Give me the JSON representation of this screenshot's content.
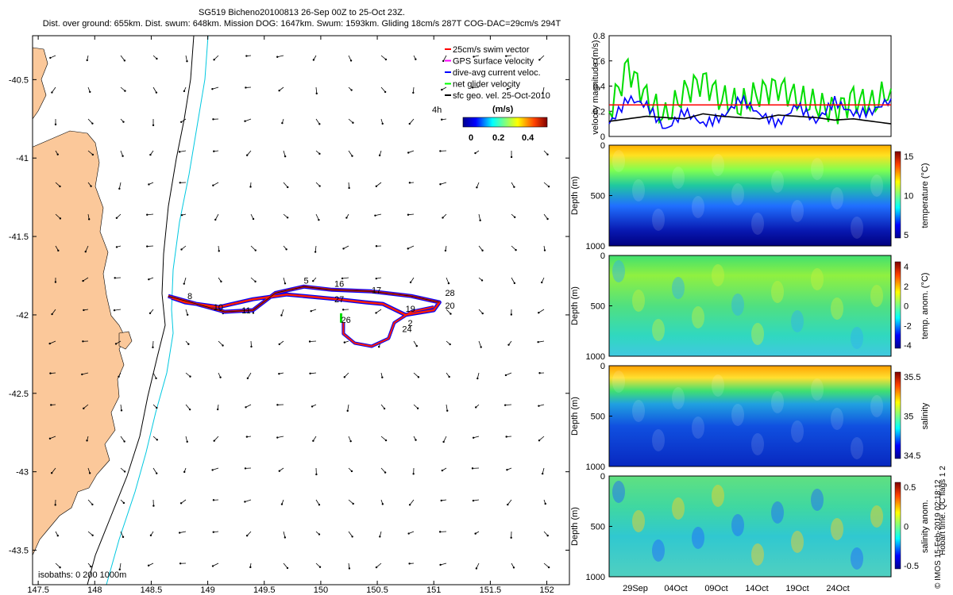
{
  "header": {
    "title": "SG519 Bicheno20100813 26-Sep 00Z to 25-Oct 23Z.",
    "subtitle": "Dist. over ground: 655km. Dist. swum: 648km. Mission DOG: 1647km. Swum: 1593km. Gliding 18cm/s 287T COG-DAC=29cm/s 294T"
  },
  "map": {
    "lon_ticks": [
      "147.5",
      "148",
      "148.5",
      "149",
      "149.5",
      "150",
      "150.5",
      "151",
      "151.5",
      "152"
    ],
    "lat_ticks": [
      "-40.5",
      "-41",
      "-41.5",
      "-42",
      "-42.5",
      "-43",
      "-43.5"
    ],
    "lon_range": [
      147.45,
      152.2
    ],
    "lat_range": [
      -43.72,
      -40.22
    ],
    "legend": [
      {
        "label": "25cm/s swim vector",
        "color": "#ff0000"
      },
      {
        "label": "GPS surface velocity",
        "color": "#ff00ff"
      },
      {
        "label": "dive-avg current veloc.",
        "color": "#0000ff"
      },
      {
        "label": "net glider velocity",
        "color": "#00ff00"
      },
      {
        "label": "sfc geo. vel. 25-Oct-2010",
        "color": "#000000"
      }
    ],
    "legend_4h": "4h",
    "colorbar_unit": "(m/s)",
    "colorbar_ticks": [
      "0",
      "0.2",
      "0.4"
    ],
    "isobath_label": "isobaths: 0   200  1000m",
    "track_labels": [
      {
        "text": "8",
        "lon": 148.82,
        "lat": -41.9
      },
      {
        "text": "10",
        "lon": 149.05,
        "lat": -41.97
      },
      {
        "text": "11",
        "lon": 149.3,
        "lat": -41.99
      },
      {
        "text": "5",
        "lon": 149.85,
        "lat": -41.8
      },
      {
        "text": "16",
        "lon": 150.12,
        "lat": -41.82
      },
      {
        "text": "17",
        "lon": 150.45,
        "lat": -41.86
      },
      {
        "text": "27",
        "lon": 150.12,
        "lat": -41.92
      },
      {
        "text": "28",
        "lon": 151.1,
        "lat": -41.88
      },
      {
        "text": "20",
        "lon": 151.1,
        "lat": -41.96
      },
      {
        "text": "19",
        "lon": 150.75,
        "lat": -41.98
      },
      {
        "text": "26",
        "lon": 150.18,
        "lat": -42.05
      },
      {
        "text": "2",
        "lon": 150.77,
        "lat": -42.07
      },
      {
        "text": "24",
        "lon": 150.72,
        "lat": -42.11
      }
    ]
  },
  "velocity_panel": {
    "ylabel": "velocity magnitude (m/s)",
    "y_ticks": [
      "0",
      "0.2",
      "0.4",
      "0.6",
      "0.8"
    ]
  },
  "sections": [
    {
      "ylabel": "Depth (m)",
      "y_ticks": [
        "0",
        "500",
        "1000"
      ],
      "cbar_label": "temperature (°C)",
      "cbar_ticks": [
        "15",
        "10",
        "5"
      ]
    },
    {
      "ylabel": "Depth (m)",
      "y_ticks": [
        "0",
        "500",
        "1000"
      ],
      "cbar_label": "temp. anom. (°C)",
      "cbar_ticks": [
        "4",
        "2",
        "0",
        "-2",
        "-4"
      ]
    },
    {
      "ylabel": "Depth (m)",
      "y_ticks": [
        "0",
        "500",
        "1000"
      ],
      "cbar_label": "salinity",
      "cbar_ticks": [
        "35.5",
        "35",
        "34.5"
      ]
    },
    {
      "ylabel": "Depth (m)",
      "y_ticks": [
        "0",
        "500",
        "1000"
      ],
      "cbar_label": "salinity anom.",
      "cbar_ticks": [
        "0.5",
        "0",
        "-0.5"
      ]
    }
  ],
  "time_axis": [
    "29Sep",
    "04Oct",
    "09Oct",
    "14Oct",
    "19Oct",
    "24Oct"
  ],
  "side_note": "Hobart time. QC flags 1  2",
  "stamp": "© IMOS 15-Feb-2019 02:18:12",
  "chart_data": {
    "type": "line",
    "title": "",
    "xlabel": "",
    "ylabel": "velocity magnitude (m/s)",
    "ylim": [
      0,
      0.8
    ],
    "x": [
      0,
      2,
      4,
      6,
      8,
      10,
      12,
      14,
      16,
      18,
      20,
      22,
      24,
      26,
      28,
      30
    ],
    "series": [
      {
        "color": "#00dd00",
        "values": [
          0.2,
          0.55,
          0.3,
          0.15,
          0.35,
          0.45,
          0.3,
          0.25,
          0.35,
          0.4,
          0.3,
          0.25,
          0.2,
          0.3,
          0.25,
          0.38
        ]
      },
      {
        "color": "#0000ff",
        "values": [
          0.1,
          0.3,
          0.25,
          0.05,
          0.2,
          0.1,
          0.15,
          0.3,
          0.18,
          0.1,
          0.25,
          0.12,
          0.28,
          0.18,
          0.2,
          0.3
        ]
      },
      {
        "color": "#000000",
        "values": [
          0.12,
          0.14,
          0.16,
          0.15,
          0.14,
          0.18,
          0.16,
          0.15,
          0.14,
          0.17,
          0.16,
          0.15,
          0.13,
          0.14,
          0.12,
          0.1
        ]
      },
      {
        "color": "#ff0000",
        "values": [
          0.25,
          0.25,
          0.25,
          0.25,
          0.25,
          0.25,
          0.25,
          0.25,
          0.25,
          0.25,
          0.25,
          0.25,
          0.25,
          0.25,
          0.25,
          0.25
        ]
      }
    ]
  }
}
